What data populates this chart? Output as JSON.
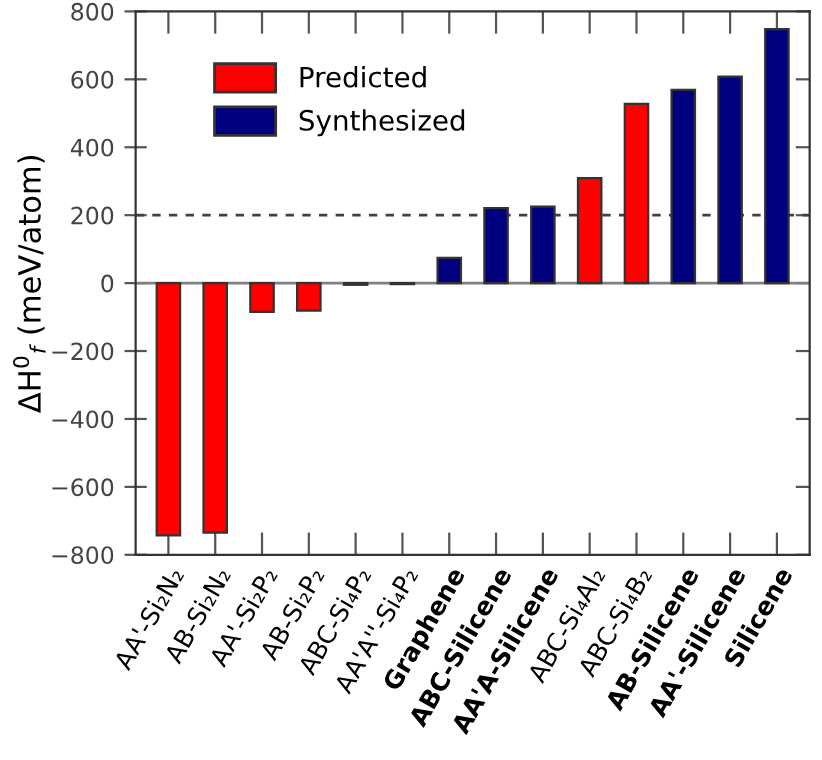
{
  "chart_data": {
    "type": "bar",
    "ylabel": "ΔH$^{0}$$_{f}$ (meV/atom)",
    "categories": [
      "AA'-Si₂N₂",
      "AB-Si₂N₂",
      "AA'-Si₂P₂",
      "AB-Si₂P₂",
      "ABC-Si₄P₂",
      "AA'A''-Si₄P₂",
      "Graphene",
      "ABC-Silicene",
      "AA'A-Silicene",
      "ABC-Si₄Al₂",
      "ABC-Si₄B₂",
      "AB-Silicene",
      "AA'-Silicene",
      "Silicene"
    ],
    "series": [
      {
        "name": "Predicted",
        "color": "#ff0000",
        "values": [
          -743,
          -735,
          -85,
          -81,
          -5,
          -3,
          null,
          null,
          null,
          309,
          528,
          null,
          null,
          null
        ]
      },
      {
        "name": "Synthesized",
        "color": "#000080",
        "values": [
          null,
          null,
          null,
          null,
          null,
          null,
          74,
          221,
          225,
          null,
          null,
          569,
          608,
          748
        ]
      }
    ],
    "ylim": [
      -800,
      800
    ],
    "yticks": [
      -800,
      -600,
      -400,
      -200,
      0,
      200,
      400,
      600,
      800
    ],
    "ref_lines": [
      {
        "axis": "y",
        "value": 0,
        "color": "#808080",
        "line_style": "solid"
      },
      {
        "axis": "y",
        "value": 200,
        "color": "#404040",
        "line_style": "dashed"
      }
    ],
    "legend": "top left",
    "grid": false
  }
}
